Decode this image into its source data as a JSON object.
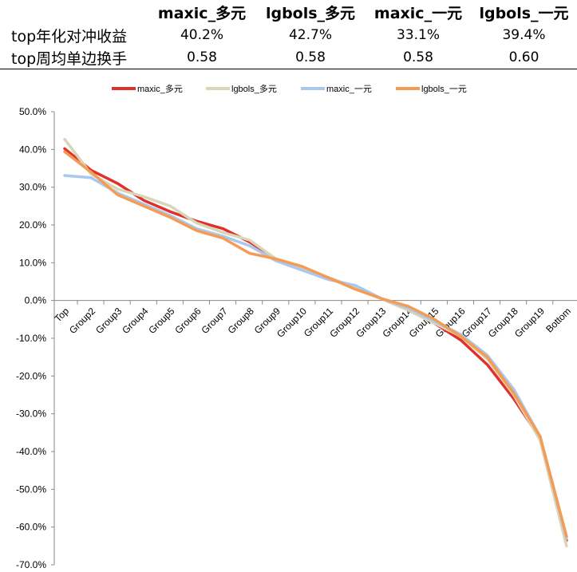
{
  "summary_table": {
    "columns": [
      "",
      "maxic_多元",
      "lgbols_多元",
      "maxic_一元",
      "lgbols_一元"
    ],
    "rows": [
      {
        "label": "top年化对冲收益",
        "values": [
          "40.2%",
          "42.7%",
          "33.1%",
          "39.4%"
        ]
      },
      {
        "label": "top周均单边换手",
        "values": [
          "0.58",
          "0.58",
          "0.58",
          "0.60"
        ]
      }
    ]
  },
  "chart_data": {
    "type": "line",
    "title": "",
    "xlabel": "",
    "ylabel": "",
    "ylim": [
      -70,
      50
    ],
    "yticks": [
      50,
      40,
      30,
      20,
      10,
      0,
      -10,
      -20,
      -30,
      -40,
      -50,
      -60,
      -70
    ],
    "ytick_labels": [
      "50.0%",
      "40.0%",
      "30.0%",
      "20.0%",
      "10.0%",
      "0.0%",
      "-10.0%",
      "-20.0%",
      "-30.0%",
      "-40.0%",
      "-50.0%",
      "-60.0%",
      "-70.0%"
    ],
    "legend_position": "top",
    "categories": [
      "Top",
      "Group2",
      "Group3",
      "Group4",
      "Group5",
      "Group6",
      "Group7",
      "Group8",
      "Group9",
      "Group10",
      "Group11",
      "Group12",
      "Group13",
      "Group14",
      "Group15",
      "Group16",
      "Group17",
      "Group18",
      "Group19",
      "Bottom"
    ],
    "series": [
      {
        "name": "maxic_多元",
        "color": "#E0302A",
        "values": [
          40.2,
          34.5,
          31.0,
          26.5,
          23.5,
          21.0,
          19.0,
          15.5,
          11.0,
          8.5,
          6.0,
          3.5,
          0.5,
          -2.5,
          -6.0,
          -10.5,
          -17.0,
          -26.0,
          -36.5,
          -63.5
        ]
      },
      {
        "name": "lgbols_多元",
        "color": "#D9D5B8",
        "values": [
          42.7,
          33.5,
          29.5,
          27.5,
          25.0,
          20.5,
          18.0,
          16.0,
          11.0,
          8.5,
          6.0,
          3.5,
          0.5,
          -2.5,
          -6.0,
          -9.5,
          -15.5,
          -25.0,
          -37.0,
          -65.0
        ]
      },
      {
        "name": "maxic_一元",
        "color": "#A9C8F0",
        "values": [
          33.1,
          32.5,
          28.5,
          25.5,
          22.5,
          19.0,
          17.0,
          14.5,
          10.5,
          8.0,
          5.5,
          4.0,
          0.5,
          -2.0,
          -5.5,
          -9.0,
          -14.5,
          -23.5,
          -36.0,
          -63.0
        ]
      },
      {
        "name": "lgbols_一元",
        "color": "#F59C54",
        "values": [
          39.4,
          34.0,
          28.0,
          25.0,
          22.0,
          18.5,
          16.5,
          12.5,
          11.0,
          9.0,
          6.0,
          3.0,
          0.5,
          -1.5,
          -5.0,
          -9.5,
          -15.0,
          -24.5,
          -36.0,
          -62.5
        ]
      }
    ]
  }
}
